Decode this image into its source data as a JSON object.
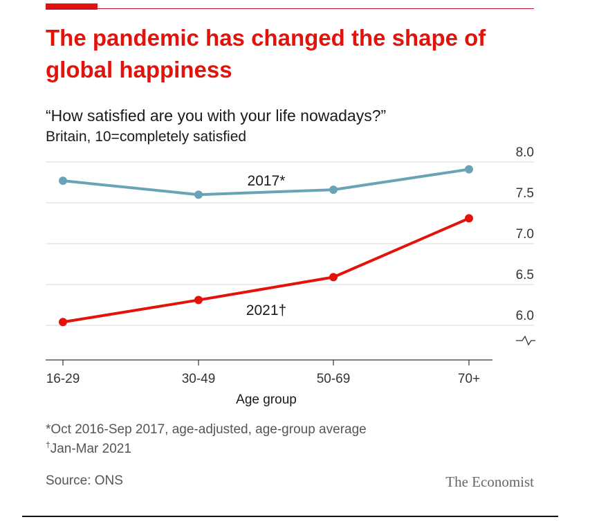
{
  "title": "The pandemic has changed the shape of global happiness",
  "subtitle": "“How satisfied are you with your life nowadays?”",
  "subtitle2": "Britain, 10=completely satisfied",
  "footnotes": {
    "line1": "*Oct 2016-Sep 2017, age-adjusted, age-group average",
    "line2_mark": "†",
    "line2": "Jan-Mar 2021"
  },
  "source": "Source: ONS",
  "brand": "The Economist",
  "colors": {
    "title": "#e3120b",
    "series_2017": "#6aa2b8",
    "series_2021": "#e3120b",
    "grid": "#d9d9d9",
    "axis": "#333333"
  },
  "chart_data": {
    "type": "line",
    "categories": [
      "16-29",
      "30-49",
      "50-69",
      "70+"
    ],
    "xlabel": "Age group",
    "ylabel": "",
    "ylim": [
      6.0,
      8.0
    ],
    "y_ticks": [
      "8.0",
      "7.5",
      "7.0",
      "6.5",
      "6.0"
    ],
    "y_axis_side": "right",
    "y_axis_broken": true,
    "grid": true,
    "series": [
      {
        "name": "2017*",
        "values": [
          7.77,
          7.6,
          7.66,
          7.91
        ]
      },
      {
        "name": "2021†",
        "values": [
          6.04,
          6.31,
          6.59,
          7.31
        ]
      }
    ]
  }
}
